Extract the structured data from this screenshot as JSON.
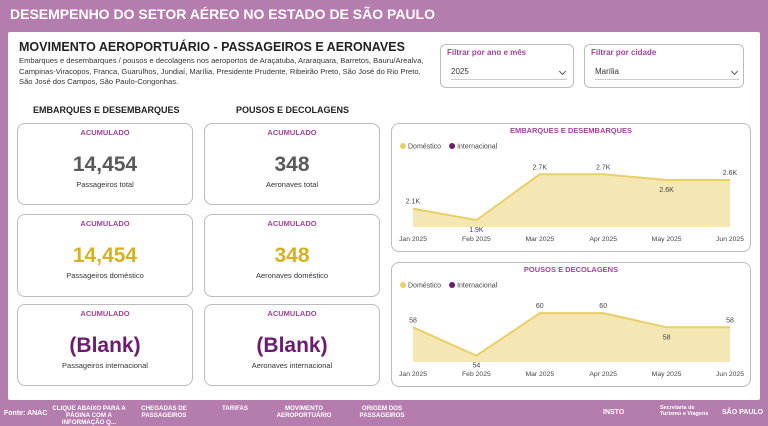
{
  "header": {
    "title": "DESEMPENHO DO SETOR AÉREO NO ESTADO DE SÃO PAULO"
  },
  "section": {
    "title": "MOVIMENTO AEROPORTUÁRIO - PASSAGEIROS E AERONAVES",
    "description": "Embarques e desembarques / pousos e decolagens nos aeroportos de Araçatuba, Araraquara, Barretos, Bauru/Arealva, Campinas-Viracopos, Franca, Guarulhos, Jundiaí, Marília, Presidente Prudente, Ribeirão Preto, São José do Rio Preto, São José dos Campos, São Paulo-Congonhas."
  },
  "filters": [
    {
      "label": "Filtrar por ano e mês",
      "value": "2025"
    },
    {
      "label": "Filtrar por cidade",
      "value": "Marília"
    }
  ],
  "columns": [
    "EMBARQUES E DESEMBARQUES",
    "POUSOS E DECOLAGENS"
  ],
  "cards": [
    {
      "header": "ACUMULADO",
      "value": "14,454",
      "caption": "Passageiros total",
      "color": "#5a5a5a"
    },
    {
      "header": "ACUMULADO",
      "value": "348",
      "caption": "Aeronaves total",
      "color": "#5a5a5a"
    },
    {
      "header": "ACUMULADO",
      "value": "14,454",
      "caption": "Passageiros doméstico",
      "color": "#d6b21e"
    },
    {
      "header": "ACUMULADO",
      "value": "348",
      "caption": "Aeronaves doméstico",
      "color": "#d6b21e"
    },
    {
      "header": "ACUMULADO",
      "value": "(Blank)",
      "caption": "Passageiros internacional",
      "color": "#6b1c6e"
    },
    {
      "header": "ACUMULADO",
      "value": "(Blank)",
      "caption": "Aeronaves internacional",
      "color": "#6b1c6e"
    }
  ],
  "charts": [
    {
      "type": "line",
      "title": "EMBARQUES E DESEMBARQUES",
      "categories": [
        "Jan 2025",
        "Feb 2025",
        "Mar 2025",
        "Apr 2025",
        "May 2025",
        "Jun 2025"
      ],
      "series": [
        {
          "name": "Doméstico",
          "color": "#e9cf67",
          "values": [
            2100,
            1900,
            2700,
            2700,
            2600,
            2600
          ],
          "value_labels": [
            "2.1K",
            "1.9K",
            "2.7K",
            "2.7K",
            "2.6K",
            "2.6K"
          ]
        },
        {
          "name": "Internacional",
          "color": "#6b1c6e",
          "values": [
            null,
            null,
            null,
            null,
            null,
            null
          ]
        }
      ]
    },
    {
      "type": "line",
      "title": "POUSOS E DECOLAGENS",
      "categories": [
        "Jan 2025",
        "Feb 2025",
        "Mar 2025",
        "Apr 2025",
        "May 2025",
        "Jun 2025"
      ],
      "series": [
        {
          "name": "Doméstico",
          "color": "#e9cf67",
          "values": [
            58,
            54,
            60,
            60,
            58,
            58
          ]
        },
        {
          "name": "Internacional",
          "color": "#6b1c6e",
          "values": [
            null,
            null,
            null,
            null,
            null,
            null
          ]
        }
      ]
    }
  ],
  "footer": {
    "source": "Fonte: ANAC",
    "nav": [
      "CLIQUE ABAIXO PARA A PÁGINA COM A INFORMAÇÃO Q...",
      "CHEGADAS DE PASSAGEIROS",
      "TARIFAS",
      "MOVIMENTO AEROPORTUÁRIO",
      "ORIGEM DOS PASSAGEIROS"
    ],
    "logos": [
      "INSTO",
      "Secretaria de Turismo e Viagens",
      "SÃO PAULO"
    ]
  }
}
